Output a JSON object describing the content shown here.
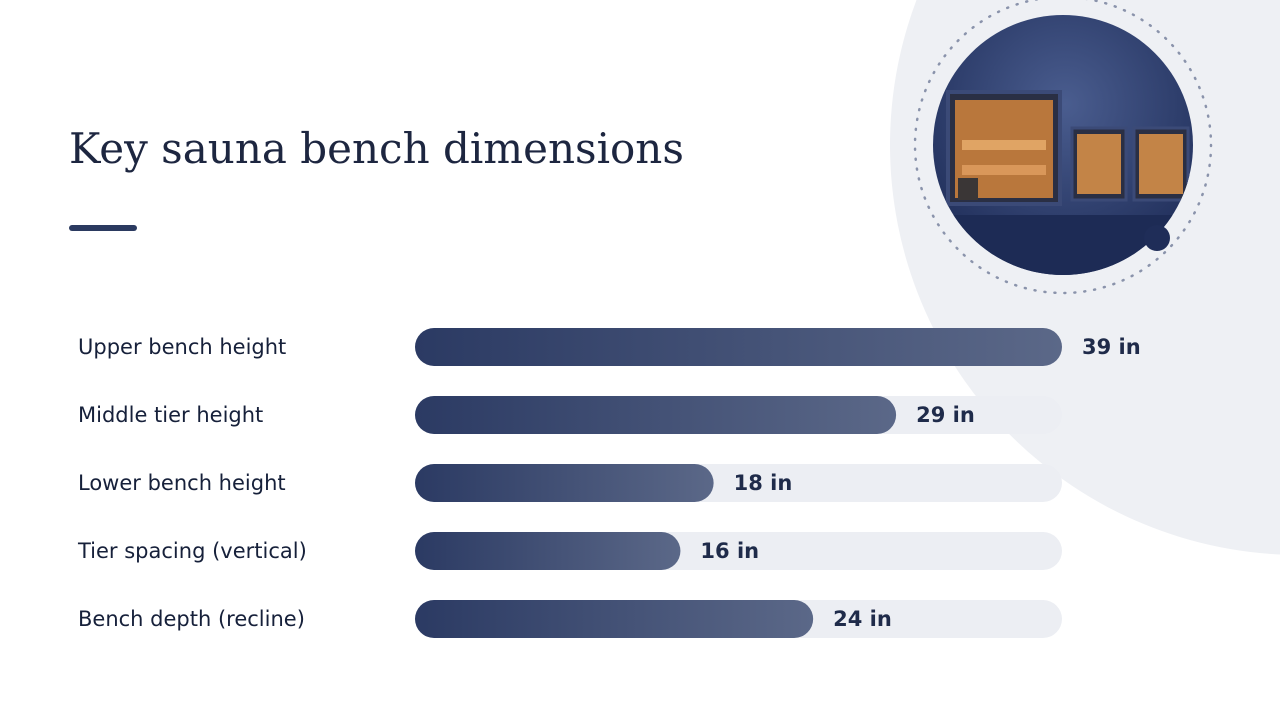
{
  "chart_data": {
    "type": "bar",
    "orientation": "horizontal",
    "title": "Key sauna bench dimensions",
    "categories": [
      "Upper bench height",
      "Middle tier height",
      "Lower bench height",
      "Tier spacing (vertical)",
      "Bench depth (recline)"
    ],
    "values": [
      39,
      29,
      18,
      16,
      24
    ],
    "value_labels": [
      "39 in",
      "29 in",
      "18 in",
      "16 in",
      "24 in"
    ],
    "xlim": [
      0,
      39
    ],
    "color": "#2b3a63"
  }
}
